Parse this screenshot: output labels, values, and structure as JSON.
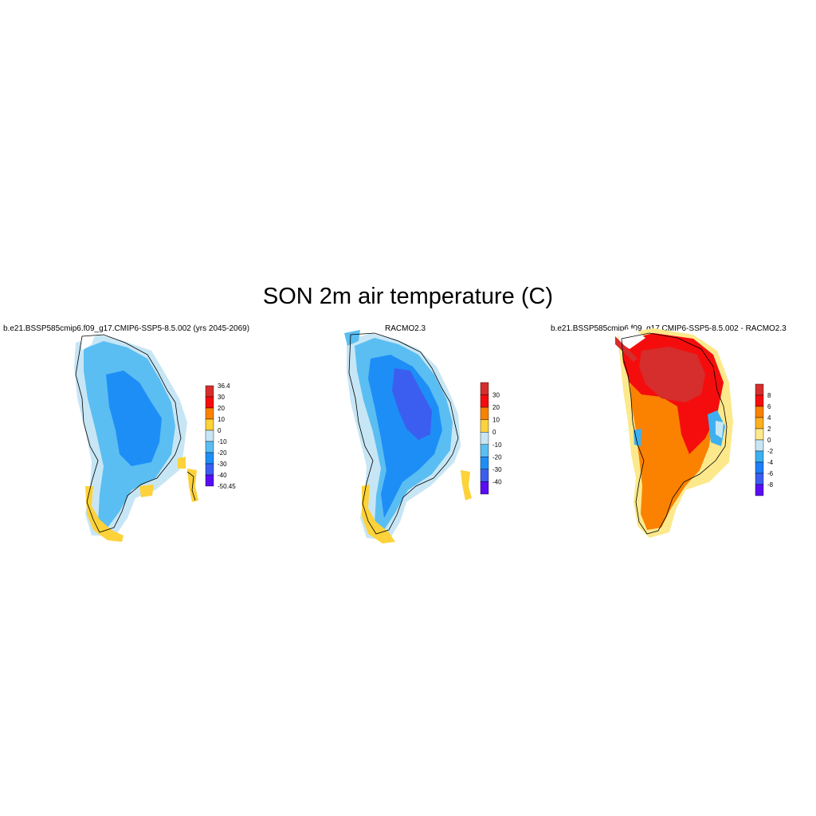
{
  "title": "SON 2m air temperature (C)",
  "chart_data": [
    {
      "type": "heatmap",
      "title": "b.e21.BSSP585cmip6.f09_g17.CMIP6-SSP5-8.5.002 (yrs 2045-2069)",
      "colorbar": {
        "labels": [
          "36.4",
          "30",
          "20",
          "10",
          "0",
          "-10",
          "-20",
          "-30",
          "-40",
          "-50.45"
        ],
        "colors": [
          "#d62d2d",
          "#f50d0d",
          "#fa8200",
          "#fdd23a",
          "#c7e6f5",
          "#5abef2",
          "#1e8ef7",
          "#3c5ef0",
          "#5a0df5"
        ]
      }
    },
    {
      "type": "heatmap",
      "title": "RACMO2.3",
      "colorbar": {
        "labels": [
          "30",
          "20",
          "10",
          "0",
          "-10",
          "-20",
          "-30",
          "-40"
        ],
        "colors": [
          "#d62d2d",
          "#f50d0d",
          "#fa8200",
          "#fdd23a",
          "#c7e6f5",
          "#5abef2",
          "#1e8ef7",
          "#3c5ef0",
          "#5a0df5"
        ]
      }
    },
    {
      "type": "heatmap",
      "title": "b.e21.BSSP585cmip6.f09_g17.CMIP6-SSP5-8.5.002 - RACMO2.3",
      "colorbar": {
        "labels": [
          "8",
          "6",
          "4",
          "2",
          "0",
          "-2",
          "-4",
          "-6",
          "-8"
        ],
        "colors": [
          "#d62d2d",
          "#f50d0d",
          "#fa8200",
          "#fcb020",
          "#fde98c",
          "#c7e6f5",
          "#3cb0f0",
          "#1e7ef7",
          "#3c5ef0",
          "#5a0df5"
        ]
      }
    }
  ]
}
